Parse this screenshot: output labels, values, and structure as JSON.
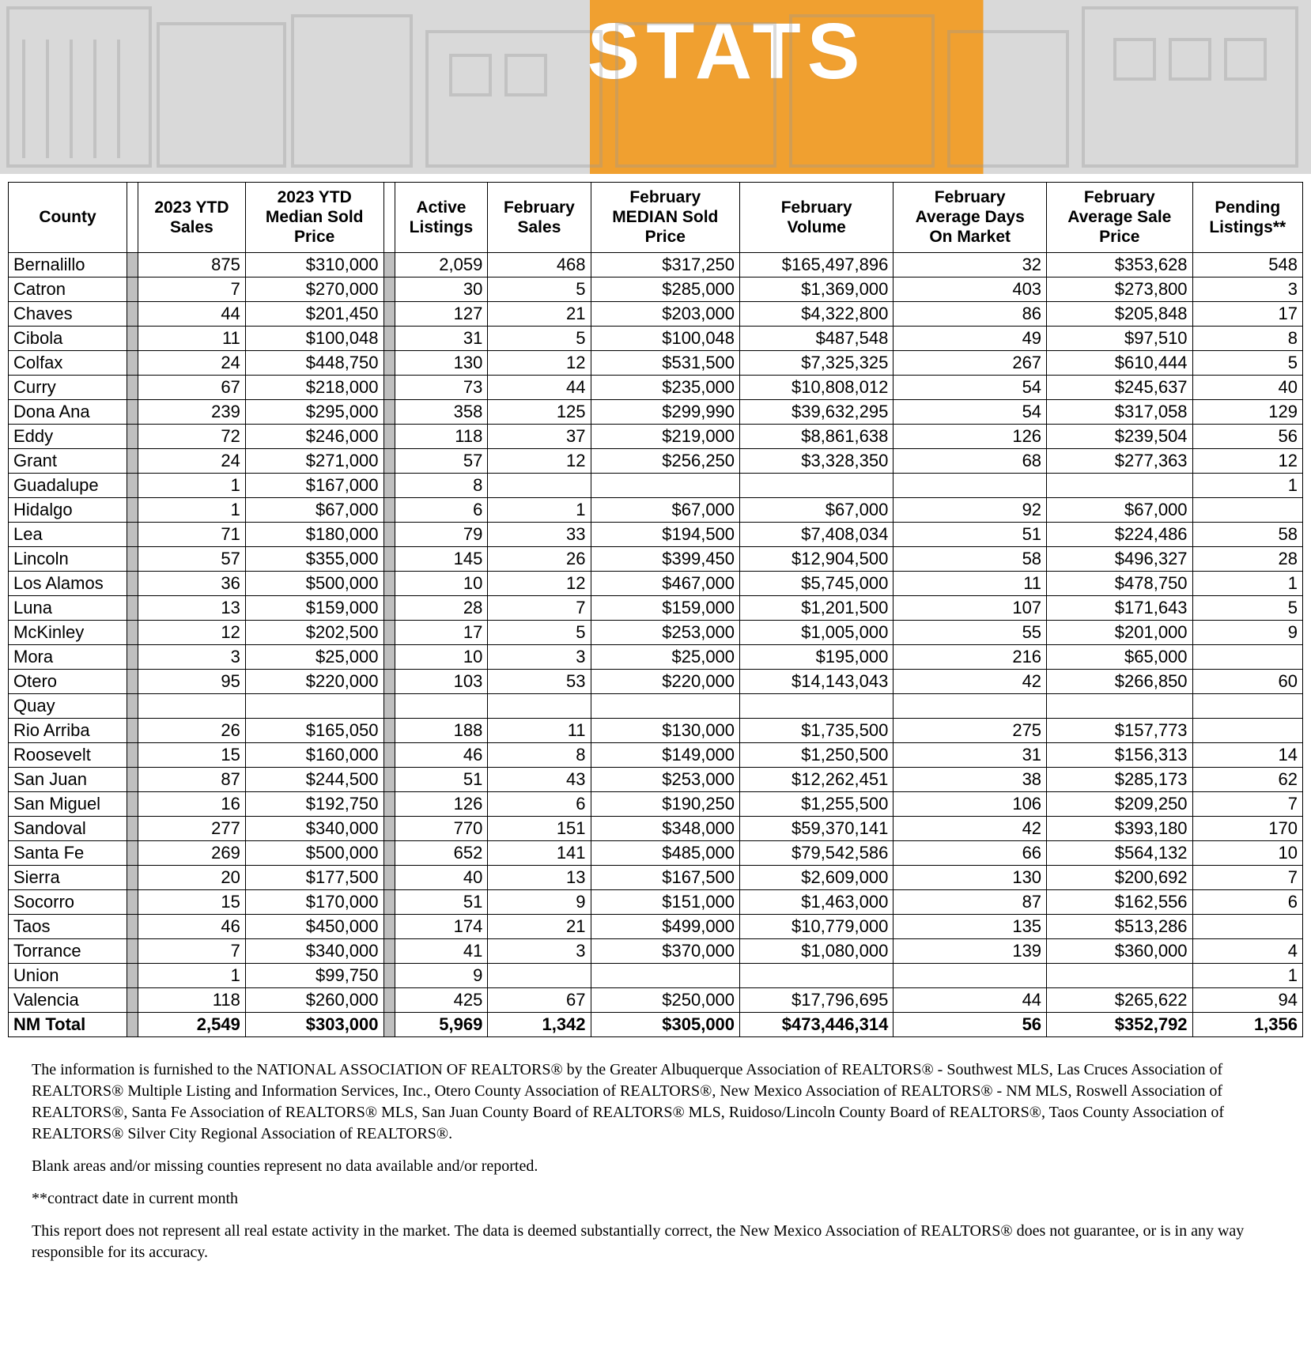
{
  "header": {
    "title": "STATS"
  },
  "table": {
    "columns": [
      "County",
      "2023 YTD Sales",
      "2023 YTD Median Sold Price",
      "Active Listings",
      "February Sales",
      "February MEDIAN Sold Price",
      "February Volume",
      "February Average Days On Market",
      "February Average Sale Price",
      "Pending Listings**"
    ],
    "rows": [
      [
        "Bernalillo",
        "875",
        "$310,000",
        "2,059",
        "468",
        "$317,250",
        "$165,497,896",
        "32",
        "$353,628",
        "548"
      ],
      [
        "Catron",
        "7",
        "$270,000",
        "30",
        "5",
        "$285,000",
        "$1,369,000",
        "403",
        "$273,800",
        "3"
      ],
      [
        "Chaves",
        "44",
        "$201,450",
        "127",
        "21",
        "$203,000",
        "$4,322,800",
        "86",
        "$205,848",
        "17"
      ],
      [
        "Cibola",
        "11",
        "$100,048",
        "31",
        "5",
        "$100,048",
        "$487,548",
        "49",
        "$97,510",
        "8"
      ],
      [
        "Colfax",
        "24",
        "$448,750",
        "130",
        "12",
        "$531,500",
        "$7,325,325",
        "267",
        "$610,444",
        "5"
      ],
      [
        "Curry",
        "67",
        "$218,000",
        "73",
        "44",
        "$235,000",
        "$10,808,012",
        "54",
        "$245,637",
        "40"
      ],
      [
        "Dona Ana",
        "239",
        "$295,000",
        "358",
        "125",
        "$299,990",
        "$39,632,295",
        "54",
        "$317,058",
        "129"
      ],
      [
        "Eddy",
        "72",
        "$246,000",
        "118",
        "37",
        "$219,000",
        "$8,861,638",
        "126",
        "$239,504",
        "56"
      ],
      [
        "Grant",
        "24",
        "$271,000",
        "57",
        "12",
        "$256,250",
        "$3,328,350",
        "68",
        "$277,363",
        "12"
      ],
      [
        "Guadalupe",
        "1",
        "$167,000",
        "8",
        "",
        "",
        "",
        "",
        "",
        "1"
      ],
      [
        "Hidalgo",
        "1",
        "$67,000",
        "6",
        "1",
        "$67,000",
        "$67,000",
        "92",
        "$67,000",
        ""
      ],
      [
        "Lea",
        "71",
        "$180,000",
        "79",
        "33",
        "$194,500",
        "$7,408,034",
        "51",
        "$224,486",
        "58"
      ],
      [
        "Lincoln",
        "57",
        "$355,000",
        "145",
        "26",
        "$399,450",
        "$12,904,500",
        "58",
        "$496,327",
        "28"
      ],
      [
        "Los Alamos",
        "36",
        "$500,000",
        "10",
        "12",
        "$467,000",
        "$5,745,000",
        "11",
        "$478,750",
        "1"
      ],
      [
        "Luna",
        "13",
        "$159,000",
        "28",
        "7",
        "$159,000",
        "$1,201,500",
        "107",
        "$171,643",
        "5"
      ],
      [
        "McKinley",
        "12",
        "$202,500",
        "17",
        "5",
        "$253,000",
        "$1,005,000",
        "55",
        "$201,000",
        "9"
      ],
      [
        "Mora",
        "3",
        "$25,000",
        "10",
        "3",
        "$25,000",
        "$195,000",
        "216",
        "$65,000",
        ""
      ],
      [
        "Otero",
        "95",
        "$220,000",
        "103",
        "53",
        "$220,000",
        "$14,143,043",
        "42",
        "$266,850",
        "60"
      ],
      [
        "Quay",
        "",
        "",
        "",
        "",
        "",
        "",
        "",
        "",
        ""
      ],
      [
        "Rio Arriba",
        "26",
        "$165,050",
        "188",
        "11",
        "$130,000",
        "$1,735,500",
        "275",
        "$157,773",
        ""
      ],
      [
        "Roosevelt",
        "15",
        "$160,000",
        "46",
        "8",
        "$149,000",
        "$1,250,500",
        "31",
        "$156,313",
        "14"
      ],
      [
        "San Juan",
        "87",
        "$244,500",
        "51",
        "43",
        "$253,000",
        "$12,262,451",
        "38",
        "$285,173",
        "62"
      ],
      [
        "San Miguel",
        "16",
        "$192,750",
        "126",
        "6",
        "$190,250",
        "$1,255,500",
        "106",
        "$209,250",
        "7"
      ],
      [
        "Sandoval",
        "277",
        "$340,000",
        "770",
        "151",
        "$348,000",
        "$59,370,141",
        "42",
        "$393,180",
        "170"
      ],
      [
        "Santa Fe",
        "269",
        "$500,000",
        "652",
        "141",
        "$485,000",
        "$79,542,586",
        "66",
        "$564,132",
        "10"
      ],
      [
        "Sierra",
        "20",
        "$177,500",
        "40",
        "13",
        "$167,500",
        "$2,609,000",
        "130",
        "$200,692",
        "7"
      ],
      [
        "Socorro",
        "15",
        "$170,000",
        "51",
        "9",
        "$151,000",
        "$1,463,000",
        "87",
        "$162,556",
        "6"
      ],
      [
        "Taos",
        "46",
        "$450,000",
        "174",
        "21",
        "$499,000",
        "$10,779,000",
        "135",
        "$513,286",
        ""
      ],
      [
        "Torrance",
        "7",
        "$340,000",
        "41",
        "3",
        "$370,000",
        "$1,080,000",
        "139",
        "$360,000",
        "4"
      ],
      [
        "Union",
        "1",
        "$99,750",
        "9",
        "",
        "",
        "",
        "",
        "",
        "1"
      ],
      [
        "Valencia",
        "118",
        "$260,000",
        "425",
        "67",
        "$250,000",
        "$17,796,695",
        "44",
        "$265,622",
        "94"
      ]
    ],
    "total": [
      "NM Total",
      "2,549",
      "$303,000",
      "5,969",
      "1,342",
      "$305,000",
      "$473,446,314",
      "56",
      "$352,792",
      "1,356"
    ]
  },
  "footnotes": {
    "p1": "The information is furnished to the NATIONAL ASSOCIATION OF REALTORS® by the Greater Albuquerque Association of REALTORS® - Southwest MLS,  Las Cruces Association of  REALTORS®  Multiple Listing and Information Services, Inc.,  Otero County Association of REALTORS®,  New Mexico Association of REALTORS® - NM MLS,  Roswell  Association of REALTORS®, Santa Fe Association of REALTORS® MLS,  San Juan County Board of REALTORS® MLS, Ruidoso/Lincoln County Board of REALTORS®,  Taos County Association of REALTORS®  Silver City Regional Association of REALTORS®.",
    "p2": " Blank areas and/or missing counties represent no data available and/or reported.",
    "p3": "**contract date in current month",
    "p4": "This report does not represent all real estate activity in the market. The data is deemed substantially correct, the New Mexico Association of REALTORS® does not guarantee, or is in any way responsible for its accuracy."
  },
  "colors": {
    "sep": "#bfbfbf",
    "border": "#000000",
    "accent": "#f0a030"
  }
}
